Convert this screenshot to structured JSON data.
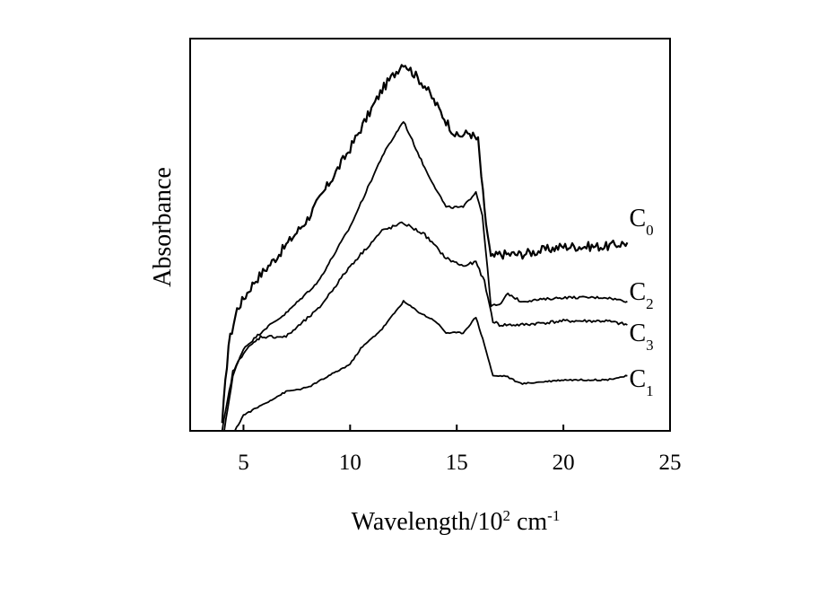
{
  "chart_data": {
    "type": "line",
    "xlabel": {
      "text": "Wavelength/10",
      "sup": "2",
      "unit": " cm",
      "unit_sup": "-1"
    },
    "ylabel": "Absorbance",
    "xlim": [
      2.5,
      25
    ],
    "ylim": [
      0,
      1
    ],
    "x_ticks": [
      5,
      10,
      15,
      20,
      25
    ],
    "y_ticks": [],
    "grid": false,
    "legend": "none",
    "series": [
      {
        "name": "C",
        "sub": "0",
        "color": "#000000",
        "noise": 0.012,
        "x": [
          4.0,
          4.3,
          4.7,
          5.5,
          6.5,
          8.0,
          10.0,
          11.5,
          12.5,
          13.5,
          14.5,
          15.0,
          15.6,
          16.0,
          16.3,
          16.6,
          17.0,
          18.0,
          20.0,
          22.0,
          23.0
        ],
        "y": [
          0.02,
          0.22,
          0.31,
          0.38,
          0.44,
          0.54,
          0.72,
          0.87,
          0.94,
          0.88,
          0.79,
          0.75,
          0.76,
          0.74,
          0.56,
          0.44,
          0.45,
          0.45,
          0.47,
          0.47,
          0.48
        ]
      },
      {
        "name": "C",
        "sub": "2",
        "color": "#000000",
        "noise": 0.003,
        "x": [
          4.1,
          4.5,
          5.0,
          6.0,
          7.0,
          8.5,
          10.0,
          11.5,
          12.5,
          13.5,
          14.5,
          15.3,
          15.9,
          16.2,
          16.6,
          17.0,
          17.4,
          18.0,
          20.0,
          22.0,
          23.0
        ],
        "y": [
          0.0,
          0.14,
          0.21,
          0.26,
          0.3,
          0.38,
          0.52,
          0.7,
          0.79,
          0.67,
          0.57,
          0.57,
          0.61,
          0.55,
          0.32,
          0.32,
          0.35,
          0.33,
          0.34,
          0.34,
          0.33
        ]
      },
      {
        "name": "C",
        "sub": "3",
        "color": "#000000",
        "noise": 0.004,
        "x": [
          4.0,
          4.5,
          5.0,
          5.8,
          7.0,
          8.5,
          10.0,
          11.5,
          12.5,
          13.5,
          14.5,
          15.3,
          15.9,
          16.3,
          16.7,
          17.0,
          18.0,
          20.0,
          22.0,
          23.0
        ],
        "y": [
          0.0,
          0.15,
          0.2,
          0.24,
          0.24,
          0.31,
          0.42,
          0.51,
          0.53,
          0.5,
          0.44,
          0.42,
          0.43,
          0.38,
          0.28,
          0.27,
          0.27,
          0.28,
          0.28,
          0.27
        ]
      },
      {
        "name": "C",
        "sub": "1",
        "color": "#000000",
        "noise": 0.002,
        "x": [
          4.6,
          5.0,
          6.0,
          7.0,
          8.0,
          9.0,
          10.0,
          10.5,
          11.5,
          12.5,
          13.3,
          14.0,
          14.5,
          15.3,
          15.9,
          16.3,
          16.7,
          17.3,
          18.0,
          20.0,
          22.0,
          23.0
        ],
        "y": [
          0.0,
          0.04,
          0.07,
          0.1,
          0.11,
          0.14,
          0.17,
          0.21,
          0.26,
          0.33,
          0.3,
          0.28,
          0.25,
          0.25,
          0.29,
          0.22,
          0.14,
          0.14,
          0.12,
          0.13,
          0.13,
          0.14
        ]
      }
    ]
  }
}
